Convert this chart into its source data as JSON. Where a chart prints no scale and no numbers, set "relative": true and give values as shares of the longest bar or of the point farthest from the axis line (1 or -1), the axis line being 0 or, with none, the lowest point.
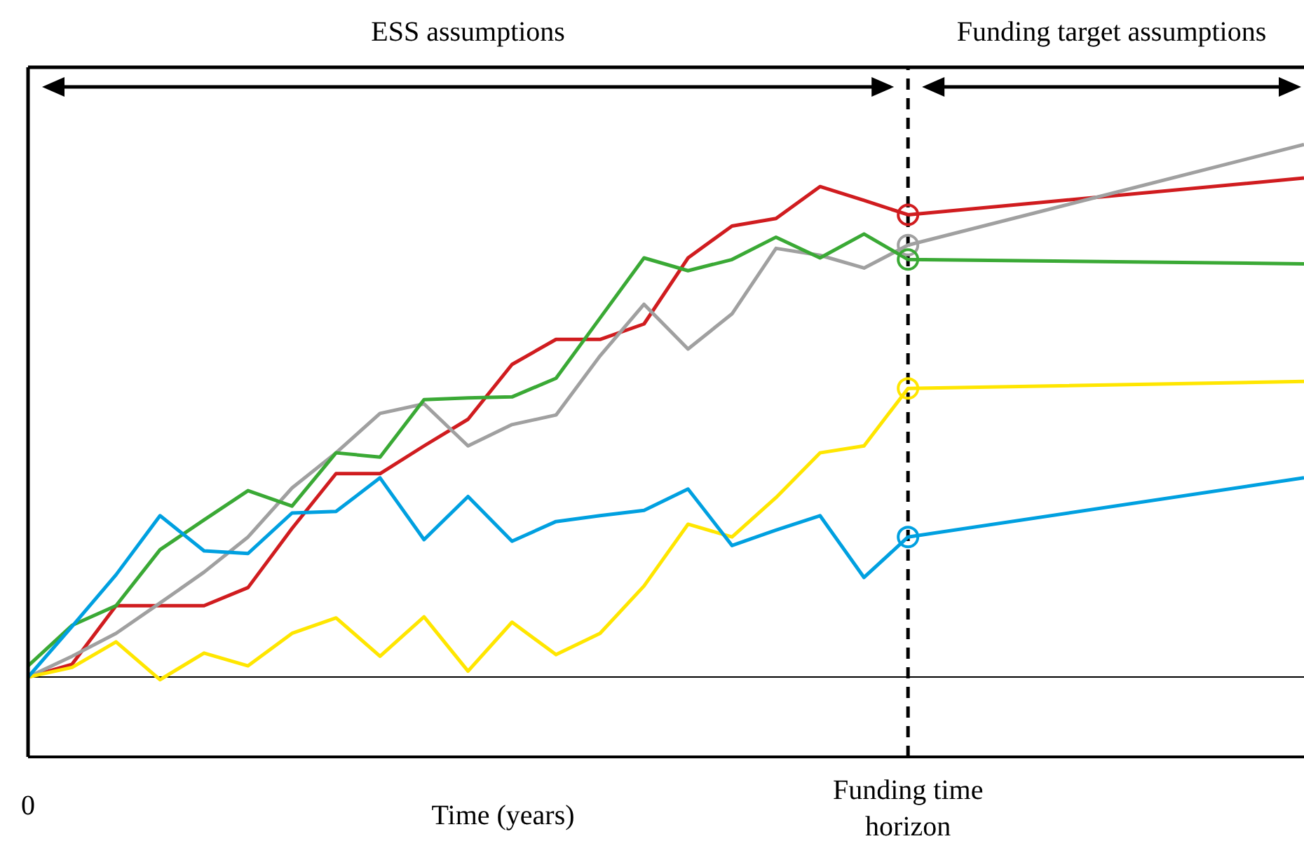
{
  "chart_data": {
    "type": "line",
    "relative": true,
    "xlabel": "Time (years)",
    "annotations": [
      "ESS assumptions",
      "Funding target assumptions"
    ],
    "categories": [
      "0",
      null,
      null,
      null,
      null,
      null,
      null,
      null,
      null,
      null,
      null,
      null,
      null,
      null,
      null,
      null,
      null,
      null,
      null,
      null,
      "Funding time horizon",
      null,
      null,
      null,
      null,
      null,
      null,
      null,
      null,
      null
    ],
    "marker": "none",
    "line_style": "solid",
    "series": [
      {
        "color": "#d01c1f",
        "values": [
          0,
          0.024,
          0.134,
          0.134,
          0.134,
          0.168,
          0.279,
          0.382,
          0.382,
          0.434,
          0.484,
          0.587,
          0.634,
          0.634,
          0.663,
          0.787,
          0.847,
          0.861,
          0.921,
          0.895,
          0.868,
          null,
          null,
          null,
          null,
          null,
          null,
          null,
          null,
          0.937
        ]
      },
      {
        "color": "#a0a0a0",
        "values": [
          0,
          0.039,
          0.082,
          0.139,
          0.197,
          0.263,
          0.355,
          0.421,
          0.495,
          0.513,
          0.434,
          0.474,
          0.492,
          0.603,
          0.7,
          0.616,
          0.682,
          0.805,
          0.792,
          0.768,
          0.811,
          null,
          null,
          null,
          null,
          null,
          null,
          null,
          null,
          1
        ]
      },
      {
        "color": "#3aa935",
        "values": [
          0.021,
          0.097,
          0.134,
          0.239,
          0.295,
          0.35,
          0.321,
          0.421,
          0.413,
          0.521,
          0.524,
          0.526,
          0.561,
          0.674,
          0.787,
          0.763,
          0.784,
          0.826,
          0.787,
          0.832,
          0.784,
          null,
          null,
          null,
          null,
          null,
          null,
          null,
          null,
          0.776
        ]
      },
      {
        "color": "#ffe600",
        "values": [
          0,
          0.018,
          0.066,
          -0.005,
          0.045,
          0.021,
          0.082,
          0.111,
          0.039,
          0.113,
          0.011,
          0.103,
          0.042,
          0.082,
          0.171,
          0.287,
          0.263,
          0.337,
          0.421,
          0.434,
          0.542,
          null,
          null,
          null,
          null,
          null,
          null,
          null,
          null,
          0.555
        ]
      },
      {
        "color": "#00a0e0",
        "values": [
          0,
          0.095,
          0.192,
          0.303,
          0.237,
          0.232,
          0.308,
          0.311,
          0.374,
          0.258,
          0.339,
          0.255,
          0.292,
          0.303,
          0.313,
          0.353,
          0.247,
          0.276,
          0.303,
          0.187,
          0.263,
          null,
          null,
          null,
          null,
          null,
          null,
          null,
          null,
          0.374
        ]
      },
      {
        "type": "scatter",
        "marker": "circle",
        "x": [
          "Funding time horizon",
          "Funding time horizon",
          "Funding time horizon",
          "Funding time horizon",
          "Funding time horizon"
        ],
        "values": [
          0.868,
          0.811,
          0.784,
          0.542,
          0.263
        ],
        "colors": [
          "#d01c1f",
          "#a0a0a0",
          "#3aa935",
          "#ffe600",
          "#00a0e0"
        ]
      }
    ],
    "ref_lines": [
      {
        "axis": "x",
        "value": "Funding time horizon",
        "color": "#000000",
        "line_style": "dashed"
      }
    ]
  }
}
